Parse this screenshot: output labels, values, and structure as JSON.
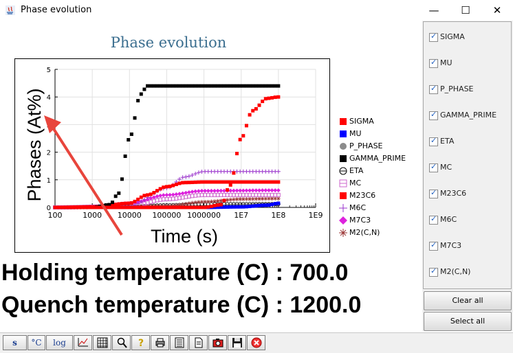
{
  "window": {
    "title": "Phase evolution"
  },
  "chart_data": {
    "type": "line",
    "title": "Phase evolution",
    "xlabel": "Time (s)",
    "ylabel": "Phases (At%)",
    "xscale": "log",
    "xlim": [
      100,
      1000000000
    ],
    "ylim": [
      0,
      5
    ],
    "x_tick_labels": [
      "100",
      "1000",
      "10000",
      "100000",
      "1000000",
      "1E7",
      "1E8",
      "1E9"
    ],
    "y_tick_labels": [
      "0",
      "1",
      "2",
      "3",
      "4",
      "5"
    ],
    "grid": true,
    "legend_position": "right",
    "series": [
      {
        "name": "SIGMA",
        "color": "#ff0000",
        "marker": "square",
        "x": [
          100,
          1000000,
          3000000,
          5000000,
          10000000,
          20000000,
          50000000,
          100000000
        ],
        "y": [
          0,
          0,
          0.1,
          0.8,
          2.5,
          3.5,
          3.95,
          4.0
        ]
      },
      {
        "name": "MU",
        "color": "#0000ff",
        "marker": "square",
        "x": [
          100,
          1000000,
          10000000,
          50000000,
          100000000
        ],
        "y": [
          0,
          0,
          0.02,
          0.08,
          0.15
        ]
      },
      {
        "name": "P_PHASE",
        "color": "#8c8c8c",
        "marker": "circle",
        "x": [
          100,
          1000000,
          10000000,
          100000000
        ],
        "y": [
          0,
          0.02,
          0.08,
          0.12
        ]
      },
      {
        "name": "GAMMA_PRIME",
        "color": "#000000",
        "marker": "square",
        "x": [
          100,
          1000,
          3000,
          5000,
          10000,
          20000,
          30000,
          100000,
          1000000,
          10000000,
          100000000
        ],
        "y": [
          0,
          0,
          0.1,
          0.5,
          2.5,
          4.1,
          4.4,
          4.4,
          4.4,
          4.4,
          4.4
        ]
      },
      {
        "name": "ETA",
        "color": "#000000",
        "marker": "circle-line",
        "x": [
          100,
          10000,
          100000,
          1000000,
          10000000,
          100000000
        ],
        "y": [
          0,
          0.02,
          0.08,
          0.12,
          0.12,
          0.12
        ]
      },
      {
        "name": "MC",
        "color": "#cc66cc",
        "marker": "open-square",
        "x": [
          100,
          10000,
          100000,
          1000000,
          10000000,
          100000000
        ],
        "y": [
          0,
          0.05,
          0.3,
          0.45,
          0.45,
          0.45
        ]
      },
      {
        "name": "M23C6",
        "color": "#ff0000",
        "marker": "square",
        "x": [
          100,
          1000,
          10000,
          30000,
          100000,
          300000,
          1000000,
          100000000
        ],
        "y": [
          0,
          0.02,
          0.15,
          0.45,
          0.75,
          0.9,
          0.92,
          0.92
        ]
      },
      {
        "name": "M6C",
        "color": "#9933cc",
        "marker": "plus",
        "x": [
          100,
          10000,
          100000,
          300000,
          1000000,
          100000000
        ],
        "y": [
          0,
          0.05,
          0.7,
          1.1,
          1.3,
          1.3
        ]
      },
      {
        "name": "M7C3",
        "color": "#dd22dd",
        "marker": "diamond",
        "x": [
          100,
          1000,
          10000,
          100000,
          1000000,
          100000000
        ],
        "y": [
          0,
          0.02,
          0.15,
          0.45,
          0.6,
          0.62
        ]
      },
      {
        "name": "M2(C,N)",
        "color": "#993333",
        "marker": "asterisk",
        "x": [
          100,
          100000,
          1000000,
          10000000,
          100000000
        ],
        "y": [
          0,
          0.05,
          0.2,
          0.3,
          0.32
        ]
      }
    ]
  },
  "legend_symbols": [
    "filled-square",
    "filled-square",
    "filled-circle",
    "filled-square",
    "circle-line",
    "open-square",
    "filled-square",
    "plus",
    "diamond",
    "asterisk"
  ],
  "annotation": {
    "type": "arrow",
    "color": "#e8453c"
  },
  "info": {
    "holding": "Holding temperature (C) : 700.0",
    "quench": "Quench temperature (C) : 1200.0"
  },
  "panel": {
    "phases": [
      "SIGMA",
      "MU",
      "P_PHASE",
      "GAMMA_PRIME",
      "ETA",
      "MC",
      "M23C6",
      "M6C",
      "M7C3",
      "M2(C,N)"
    ],
    "all_checked": true,
    "clear_all": "Clear all",
    "select_all": "Select all"
  },
  "toolbar": {
    "buttons": [
      {
        "name": "save-s-button",
        "label": "s"
      },
      {
        "name": "celsius-button",
        "label": "°C"
      },
      {
        "name": "log-button",
        "label": "log"
      },
      {
        "name": "line-chart-button",
        "label": "",
        "icon": "chart-icon"
      },
      {
        "name": "grid-button",
        "label": "",
        "icon": "grid-icon"
      },
      {
        "name": "zoom-button",
        "label": "",
        "icon": "magnifier-icon"
      },
      {
        "name": "help-button",
        "label": "",
        "icon": "help-icon"
      },
      {
        "name": "print-button",
        "label": "",
        "icon": "printer-icon"
      },
      {
        "name": "table-button",
        "label": "",
        "icon": "table-icon"
      },
      {
        "name": "document-button",
        "label": "",
        "icon": "document-icon"
      },
      {
        "name": "camera-button",
        "label": "",
        "icon": "camera-icon"
      },
      {
        "name": "floppy-button",
        "label": "",
        "icon": "floppy-icon"
      },
      {
        "name": "close-plot-button",
        "label": "",
        "icon": "close-circle-icon"
      }
    ]
  }
}
